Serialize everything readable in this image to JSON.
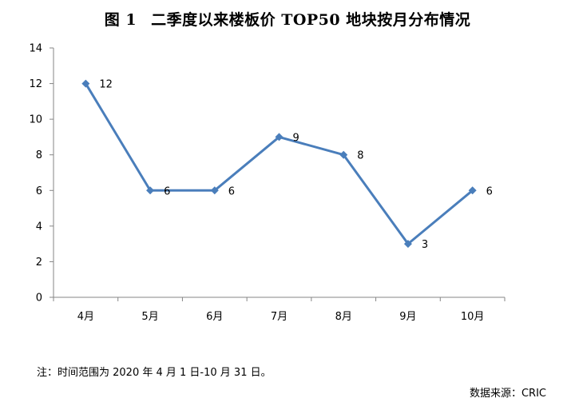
{
  "figure_label": "图 1",
  "note": "注：时间范围为 2020 年 4 月 1 日-10 月 31 日。",
  "source": "数据来源：CRIC",
  "colors": {
    "line": "#4a7ebb",
    "axis": "#868686"
  },
  "chart_data": {
    "type": "line",
    "title": "二季度以来楼板价 TOP50 地块按月分布情况",
    "categories": [
      "4月",
      "5月",
      "6月",
      "7月",
      "8月",
      "9月",
      "10月"
    ],
    "series": [
      {
        "values": [
          12,
          6,
          6,
          9,
          8,
          3,
          6
        ]
      }
    ],
    "data_labels": [
      "12",
      "6",
      "6",
      "9",
      "8",
      "3",
      "6"
    ],
    "ylim": [
      0,
      14
    ],
    "yticks": [
      0,
      2,
      4,
      6,
      8,
      10,
      12,
      14
    ],
    "xlabel": "",
    "ylabel": "",
    "grid": false,
    "legend": "none",
    "marker": "diamond"
  }
}
